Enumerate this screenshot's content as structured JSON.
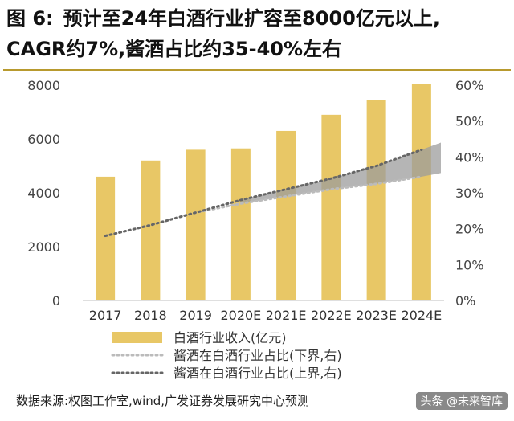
{
  "header": {
    "figure_label": "图 6:",
    "title_line1": "预计至24年白酒行业扩容至8000亿元以上,",
    "title_line2": "CAGR约7%,酱酒占比约35-40%左右"
  },
  "footer": {
    "source": "数据来源:权图工作室,wind,广发证券发展研究中心预测",
    "watermark": "头条 @未来智库"
  },
  "colors": {
    "bar": "#E8C766",
    "lower_line": "#BBBBBB",
    "upper_line": "#666666",
    "band": "#9C9C9C",
    "accent_rule": "#B89A2E"
  },
  "chart_data": {
    "type": "bar",
    "categories": [
      "2017",
      "2018",
      "2019",
      "2020E",
      "2021E",
      "2022E",
      "2023E",
      "2024E"
    ],
    "series": [
      {
        "name": "白酒行业收入(亿元)",
        "type": "bar",
        "axis": "left",
        "values": [
          4600,
          5200,
          5600,
          5650,
          6300,
          6900,
          7450,
          8050
        ]
      },
      {
        "name": "酱酒在白酒行业占比(下界,右)",
        "type": "line",
        "axis": "right",
        "values": [
          0.18,
          0.21,
          0.245,
          0.27,
          0.29,
          0.31,
          0.325,
          0.345
        ]
      },
      {
        "name": "酱酒在白酒行业占比(上界,右)",
        "type": "line",
        "axis": "right",
        "values": [
          0.18,
          0.21,
          0.245,
          0.28,
          0.31,
          0.34,
          0.375,
          0.42
        ]
      }
    ],
    "band_extension": {
      "category": "2024E",
      "upper": 0.44,
      "lower": 0.355
    },
    "y_left": {
      "min": 0,
      "max": 8000,
      "ticks": [
        "0",
        "2000",
        "4000",
        "6000",
        "8000"
      ]
    },
    "y_right": {
      "min": 0,
      "max": 0.6,
      "ticks": [
        "0%",
        "10%",
        "20%",
        "30%",
        "40%",
        "50%",
        "60%"
      ]
    },
    "legend_position": "bottom",
    "grid": false
  }
}
